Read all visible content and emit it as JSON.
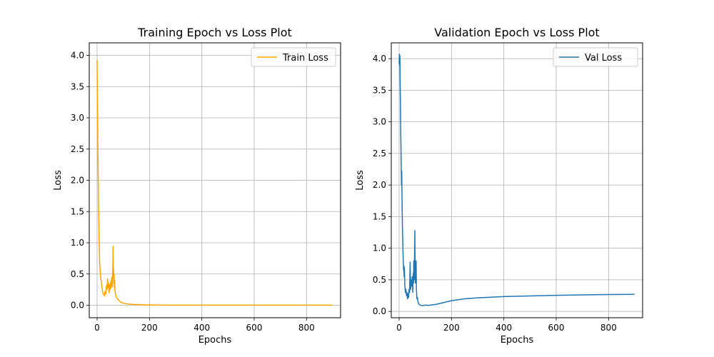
{
  "chart_data": [
    {
      "type": "line",
      "title": "Training Epoch vs Loss Plot",
      "xlabel": "Epochs",
      "ylabel": "Loss",
      "xlim": [
        -30,
        930
      ],
      "ylim": [
        -0.2,
        4.2
      ],
      "xticks": [
        0,
        200,
        400,
        600,
        800
      ],
      "yticks": [
        0.0,
        0.5,
        1.0,
        1.5,
        2.0,
        2.5,
        3.0,
        3.5,
        4.0
      ],
      "grid": true,
      "legend_position": "upper-right",
      "series": [
        {
          "name": "Train Loss",
          "color": "#ffa500",
          "x": [
            0,
            2,
            4,
            6,
            8,
            10,
            12,
            14,
            16,
            18,
            20,
            22,
            25,
            28,
            30,
            33,
            36,
            38,
            40,
            42,
            44,
            46,
            48,
            50,
            52,
            54,
            56,
            58,
            60,
            61,
            62,
            63,
            64,
            65,
            66,
            67,
            68,
            70,
            72,
            75,
            80,
            85,
            90,
            100,
            110,
            120,
            140,
            160,
            180,
            200,
            250,
            300,
            400,
            500,
            600,
            700,
            800,
            899
          ],
          "y": [
            3.93,
            3.0,
            2.1,
            1.5,
            1.0,
            0.65,
            0.55,
            0.42,
            0.38,
            0.3,
            0.25,
            0.2,
            0.17,
            0.15,
            0.22,
            0.18,
            0.32,
            0.25,
            0.42,
            0.28,
            0.35,
            0.2,
            0.33,
            0.25,
            0.38,
            0.28,
            0.45,
            0.3,
            0.6,
            0.94,
            0.45,
            0.58,
            0.35,
            0.5,
            0.28,
            0.4,
            0.25,
            0.18,
            0.15,
            0.12,
            0.09,
            0.07,
            0.05,
            0.035,
            0.025,
            0.018,
            0.012,
            0.008,
            0.005,
            0.004,
            0.002,
            0.001,
            0.001,
            0.001,
            0.001,
            0.001,
            0.001,
            0.001
          ]
        }
      ]
    },
    {
      "type": "line",
      "title": "Validation Epoch vs Loss Plot",
      "xlabel": "Epochs",
      "ylabel": "Loss",
      "xlim": [
        -30,
        930
      ],
      "ylim": [
        -0.1,
        4.25
      ],
      "xticks": [
        0,
        200,
        400,
        600,
        800
      ],
      "yticks": [
        0.0,
        0.5,
        1.0,
        1.5,
        2.0,
        2.5,
        3.0,
        3.5,
        4.0
      ],
      "grid": true,
      "legend_position": "upper-right",
      "series": [
        {
          "name": "Val Loss",
          "color": "#1f77b4",
          "x": [
            0,
            1,
            2,
            3,
            4,
            5,
            6,
            7,
            8,
            9,
            10,
            11,
            12,
            13,
            14,
            15,
            16,
            17,
            18,
            19,
            20,
            22,
            24,
            26,
            28,
            30,
            32,
            34,
            36,
            38,
            40,
            42,
            44,
            46,
            48,
            50,
            52,
            54,
            55,
            56,
            58,
            60,
            61,
            62,
            63,
            64,
            65,
            66,
            68,
            70,
            72,
            75,
            80,
            90,
            100,
            110,
            120,
            140,
            160,
            180,
            200,
            250,
            300,
            350,
            400,
            500,
            600,
            700,
            800,
            899
          ],
          "y": [
            3.92,
            4.07,
            3.9,
            4.05,
            3.6,
            3.3,
            2.9,
            2.6,
            2.3,
            2.0,
            2.22,
            1.8,
            1.5,
            1.25,
            1.1,
            0.9,
            0.78,
            0.65,
            0.72,
            0.55,
            0.7,
            0.4,
            0.3,
            0.35,
            0.25,
            0.3,
            0.2,
            0.28,
            0.22,
            0.35,
            0.3,
            0.78,
            0.35,
            0.5,
            0.4,
            0.55,
            0.3,
            0.6,
            0.45,
            0.8,
            0.5,
            1.28,
            0.65,
            0.45,
            0.75,
            0.55,
            0.8,
            0.35,
            0.2,
            0.22,
            0.15,
            0.12,
            0.1,
            0.09,
            0.1,
            0.095,
            0.1,
            0.11,
            0.13,
            0.15,
            0.17,
            0.2,
            0.215,
            0.225,
            0.235,
            0.245,
            0.255,
            0.262,
            0.267,
            0.27
          ]
        }
      ]
    }
  ]
}
